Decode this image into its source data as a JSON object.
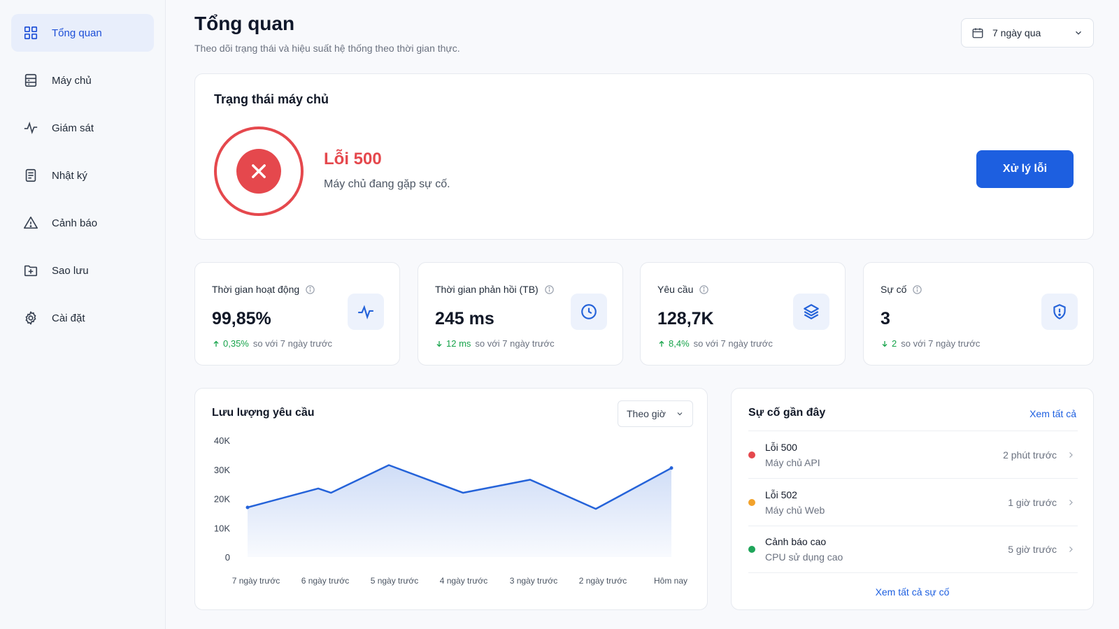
{
  "sidebar": {
    "items": [
      {
        "label": "Tổng quan",
        "icon": "grid-icon",
        "active": true
      },
      {
        "label": "Máy chủ",
        "icon": "server-icon"
      },
      {
        "label": "Giám sát",
        "icon": "activity-icon"
      },
      {
        "label": "Nhật ký",
        "icon": "document-icon"
      },
      {
        "label": "Cảnh báo",
        "icon": "warning-icon"
      },
      {
        "label": "Sao lưu",
        "icon": "backup-folder-icon"
      },
      {
        "label": "Cài đặt",
        "icon": "gear-icon"
      }
    ]
  },
  "header": {
    "title": "Tổng quan",
    "subtitle": "Theo dõi trạng thái và hiệu suất hệ thống theo thời gian thực.",
    "date_range": "7 ngày qua"
  },
  "status": {
    "title": "Trạng thái máy chủ",
    "error_title": "Lỗi 500",
    "error_desc": "Máy chủ đang gặp sự cố.",
    "action_label": "Xử lý lỗi",
    "error_color": "#e5484d",
    "action_color": "#1d5fe0"
  },
  "stats": [
    {
      "label": "Thời gian hoạt động",
      "value": "99,85%",
      "delta": "0,35%",
      "delta_dir": "up",
      "compare": "so với 7 ngày trước",
      "icon": "pulse-icon"
    },
    {
      "label": "Thời gian phản hồi (TB)",
      "value": "245 ms",
      "delta": "12 ms",
      "delta_dir": "down",
      "compare": "so với 7 ngày trước",
      "icon": "clock-icon"
    },
    {
      "label": "Yêu cầu",
      "value": "128,7K",
      "delta": "8,4%",
      "delta_dir": "up",
      "compare": "so với 7 ngày trước",
      "icon": "layers-icon"
    },
    {
      "label": "Sự cố",
      "value": "3",
      "delta": "2",
      "delta_dir": "down",
      "compare": "so với 7 ngày trước",
      "icon": "shield-alert-icon"
    }
  ],
  "traffic": {
    "title": "Lưu lượng yêu cầu",
    "granularity": "Theo giờ"
  },
  "chart_data": {
    "type": "area",
    "title": "Lưu lượng yêu cầu",
    "x": [
      0,
      1,
      1.18,
      2,
      3.05,
      4,
      4.93,
      6
    ],
    "x_tick_labels": [
      "7 ngày trước",
      "6 ngày trước",
      "5 ngày trước",
      "4 ngày trước",
      "3 ngày trước",
      "2 ngày trước",
      "Hôm nay"
    ],
    "y_tick_labels": [
      "0",
      "10K",
      "20K",
      "30K",
      "40K"
    ],
    "series": [
      {
        "values": [
          17000,
          23500,
          22000,
          31500,
          22000,
          26500,
          16500,
          30500
        ]
      }
    ],
    "ylim": [
      0,
      40000
    ],
    "grid": false,
    "color": "#2563d9"
  },
  "incidents": {
    "title": "Sự cố gần đây",
    "view_all_label": "Xem tất cả",
    "view_all_incidents_label": "Xem tất cả sự cố",
    "items": [
      {
        "title": "Lỗi 500",
        "source": "Máy chủ API",
        "time": "2 phút trước",
        "color": "#e5484d"
      },
      {
        "title": "Lỗi 502",
        "source": "Máy chủ Web",
        "time": "1 giờ trước",
        "color": "#f2a22b"
      },
      {
        "title": "Cảnh báo cao",
        "source": "CPU sử dụng cao",
        "time": "5 giờ trước",
        "color": "#1fa55a"
      }
    ]
  }
}
